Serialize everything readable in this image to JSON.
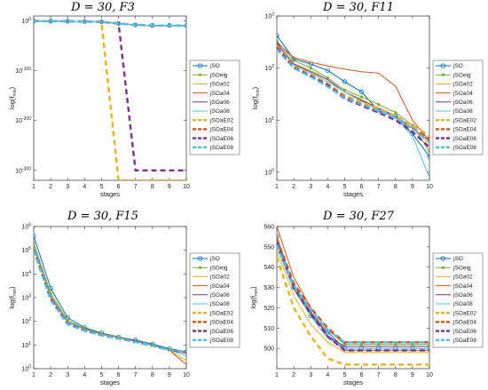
{
  "colors": {
    "jSO": "#0072BD",
    "jSOeig": "#77AC30",
    "jSOa02": "#EDB120",
    "jSOa04": "#D95319",
    "jSOa06": "#7E2F8E",
    "jSOa08": "#4DBEEE",
    "jSOaE02": "#EDB120",
    "jSOaE04": "#D95319",
    "jSOaE06": "#7E2F8E",
    "jSOaE08": "#4DBEEE"
  },
  "chart_data": [
    {
      "type": "line",
      "title": "D = 30, F3",
      "xlabel": "stages",
      "ylabel": "log(f_min)",
      "yscale": "log",
      "ylim": [
        1e-320,
        10000000000.0
      ],
      "yticks": [
        {
          "v": 1.0,
          "base": "10",
          "exp": "0"
        },
        {
          "v": 1e-100,
          "base": "10",
          "exp": "-100"
        },
        {
          "v": 1e-200,
          "base": "10",
          "exp": "-200"
        },
        {
          "v": 1e-300,
          "base": "10",
          "exp": "-300"
        }
      ],
      "xlim": [
        1,
        10
      ],
      "x": [
        1,
        2,
        3,
        4,
        5,
        6,
        7,
        8,
        9,
        10
      ],
      "legend": "right",
      "series": [
        {
          "name": "jSO",
          "values": [
            1,
            0.6,
            0.3,
            0.1,
            0.02,
            1e-05,
            1e-08,
            1e-09,
            1e-09,
            1e-09
          ]
        },
        {
          "name": "jSOeig",
          "values": [
            1,
            0.6,
            0.3,
            0.1,
            0.02,
            1e-05,
            1e-08,
            1e-09,
            1e-09,
            1e-09
          ]
        },
        {
          "name": "jSOa02",
          "values": [
            1,
            0.6,
            0.3,
            0.1,
            0.02,
            1e-05,
            1e-08,
            1e-09,
            1e-09,
            1e-09
          ]
        },
        {
          "name": "jSOa04",
          "values": [
            1,
            0.6,
            0.3,
            0.1,
            0.02,
            1e-05,
            1e-08,
            1e-09,
            1e-09,
            1e-09
          ]
        },
        {
          "name": "jSOa06",
          "values": [
            1,
            0.6,
            0.3,
            0.1,
            0.02,
            1e-05,
            1e-08,
            1e-09,
            1e-09,
            1e-09
          ]
        },
        {
          "name": "jSOa08",
          "values": [
            1,
            0.6,
            0.3,
            0.1,
            0.02,
            1e-05,
            1e-08,
            1e-09,
            1e-09,
            1e-09
          ]
        },
        {
          "name": "jSOaE02",
          "values": [
            1,
            0.6,
            0.3,
            0.1,
            0.02,
            1e-320,
            1e-320,
            1e-320,
            1e-320,
            1e-320
          ]
        },
        {
          "name": "jSOaE04",
          "values": [
            1,
            0.6,
            0.3,
            0.1,
            0.02,
            1e-05,
            1e-08,
            1e-09,
            1e-09,
            1e-09
          ]
        },
        {
          "name": "jSOaE06",
          "values": [
            1,
            0.6,
            0.3,
            0.1,
            0.02,
            1e-05,
            1e-300,
            1e-300,
            1e-300,
            1e-300
          ]
        },
        {
          "name": "jSOaE08",
          "values": [
            1,
            0.6,
            0.3,
            0.1,
            0.02,
            1e-05,
            1e-08,
            1e-09,
            1e-09,
            1e-09
          ]
        }
      ]
    },
    {
      "type": "line",
      "title": "D = 30, F11",
      "xlabel": "stages",
      "ylabel": "log(f_min)",
      "yscale": "log",
      "ylim": [
        0.7,
        1000
      ],
      "yticks": [
        {
          "v": 1,
          "base": "10",
          "exp": "0"
        },
        {
          "v": 10,
          "base": "10",
          "exp": "1"
        },
        {
          "v": 100,
          "base": "10",
          "exp": "2"
        },
        {
          "v": 1000,
          "base": "10",
          "exp": "3"
        }
      ],
      "xlim": [
        1,
        10
      ],
      "x": [
        1,
        2,
        3,
        4,
        5,
        6,
        7,
        8,
        9,
        10
      ],
      "legend": "right",
      "series": [
        {
          "name": "jSO",
          "values": [
            420,
            150,
            120,
            90,
            55,
            35,
            15,
            12,
            5.5,
            2.0
          ]
        },
        {
          "name": "jSOeig",
          "values": [
            330,
            140,
            100,
            65,
            38,
            28,
            20,
            14,
            8,
            2.5
          ]
        },
        {
          "name": "jSOa02",
          "values": [
            300,
            120,
            90,
            60,
            35,
            25,
            17,
            12,
            7,
            3.5
          ]
        },
        {
          "name": "jSOa04",
          "values": [
            310,
            160,
            130,
            110,
            95,
            85,
            80,
            45,
            10,
            4
          ]
        },
        {
          "name": "jSOa06",
          "values": [
            300,
            120,
            85,
            60,
            35,
            24,
            17,
            12,
            7,
            4
          ]
        },
        {
          "name": "jSOa08",
          "values": [
            280,
            115,
            80,
            55,
            35,
            23,
            16,
            11,
            5,
            0.8
          ]
        },
        {
          "name": "jSOaE02",
          "values": [
            260,
            110,
            75,
            50,
            30,
            22,
            17,
            12,
            8,
            5
          ]
        },
        {
          "name": "jSOaE04",
          "values": [
            250,
            105,
            70,
            48,
            28,
            20,
            15,
            10,
            7,
            4.5
          ]
        },
        {
          "name": "jSOaE06",
          "values": [
            240,
            100,
            70,
            46,
            26,
            19,
            14,
            10,
            6,
            3
          ]
        },
        {
          "name": "jSOaE08",
          "values": [
            230,
            100,
            68,
            44,
            27,
            20,
            15,
            11,
            7,
            3.8
          ]
        }
      ]
    },
    {
      "type": "line",
      "title": "D = 30, F15",
      "xlabel": "stages",
      "ylabel": "log(f_min)",
      "yscale": "log",
      "ylim": [
        1,
        1000000
      ],
      "yticks": [
        {
          "v": 1,
          "base": "10",
          "exp": "0"
        },
        {
          "v": 10,
          "base": "10",
          "exp": "1"
        },
        {
          "v": 100,
          "base": "10",
          "exp": "2"
        },
        {
          "v": 1000,
          "base": "10",
          "exp": "3"
        },
        {
          "v": 10000,
          "base": "10",
          "exp": "4"
        },
        {
          "v": 100000,
          "base": "10",
          "exp": "5"
        },
        {
          "v": 1000000,
          "base": "10",
          "exp": "6"
        }
      ],
      "xlim": [
        1,
        10
      ],
      "x": [
        1,
        2,
        3,
        4,
        5,
        6,
        7,
        8,
        9,
        10
      ],
      "legend": "right",
      "series": [
        {
          "name": "jSO",
          "values": [
            400000,
            2500,
            140,
            55,
            32,
            22,
            16,
            11,
            7,
            5.2
          ]
        },
        {
          "name": "jSOeig",
          "values": [
            200000,
            1500,
            110,
            50,
            30,
            21,
            15,
            10.5,
            6.5,
            4.8
          ]
        },
        {
          "name": "jSOa02",
          "values": [
            150000,
            1200,
            95,
            48,
            29,
            21,
            15,
            10,
            6,
            2.2
          ]
        },
        {
          "name": "jSOa04",
          "values": [
            140000,
            1100,
            90,
            46,
            28,
            20,
            14,
            10,
            6,
            1.5
          ]
        },
        {
          "name": "jSOa06",
          "values": [
            140000,
            1100,
            92,
            47,
            29,
            20,
            15,
            10,
            6,
            4.5
          ]
        },
        {
          "name": "jSOa08",
          "values": [
            130000,
            1000,
            90,
            46,
            28,
            20,
            14,
            9.5,
            6,
            3.5
          ]
        },
        {
          "name": "jSOaE02",
          "values": [
            120000,
            900,
            80,
            42,
            27,
            19,
            13.5,
            9.5,
            6,
            5
          ]
        },
        {
          "name": "jSOaE04",
          "values": [
            110000,
            850,
            78,
            41,
            26,
            19,
            13.5,
            9.5,
            6,
            5
          ]
        },
        {
          "name": "jSOaE06",
          "values": [
            110000,
            850,
            78,
            41,
            26,
            19,
            13.5,
            9.5,
            6,
            4.8
          ]
        },
        {
          "name": "jSOaE08",
          "values": [
            100000,
            800,
            75,
            40,
            26,
            19,
            13.5,
            9.5,
            6,
            5
          ]
        }
      ]
    },
    {
      "type": "line",
      "title": "D = 30, F27",
      "xlabel": "stages",
      "ylabel": "log(f_min)",
      "yscale": "linear",
      "ylim": [
        490,
        560
      ],
      "yticks": [
        {
          "v": 500,
          "label": "500"
        },
        {
          "v": 510,
          "label": "510"
        },
        {
          "v": 520,
          "label": "520"
        },
        {
          "v": 530,
          "label": "530"
        },
        {
          "v": 540,
          "label": "540"
        },
        {
          "v": 550,
          "label": "550"
        },
        {
          "v": 560,
          "label": "560"
        }
      ],
      "xlim": [
        1,
        10
      ],
      "x": [
        1,
        2,
        3,
        4,
        5,
        6,
        7,
        8,
        9,
        10
      ],
      "legend": "right",
      "series": [
        {
          "name": "jSO",
          "values": [
            555,
            530,
            516,
            508,
            500,
            500,
            500,
            500,
            500,
            500
          ]
        },
        {
          "name": "jSOeig",
          "values": [
            552,
            530,
            517,
            509,
            502,
            502,
            502,
            502,
            502,
            502
          ]
        },
        {
          "name": "jSOa02",
          "values": [
            548,
            526,
            512,
            503,
            498,
            498,
            498,
            498,
            498,
            498
          ]
        },
        {
          "name": "jSOa04",
          "values": [
            560,
            535,
            520,
            506,
            499,
            499,
            499,
            499,
            499,
            499
          ]
        },
        {
          "name": "jSOa06",
          "values": [
            553,
            531,
            518,
            506,
            501,
            501,
            501,
            501,
            501,
            501
          ]
        },
        {
          "name": "jSOa08",
          "values": [
            550,
            529,
            516,
            505,
            500,
            500,
            500,
            500,
            500,
            500
          ]
        },
        {
          "name": "jSOaE02",
          "values": [
            545,
            520,
            506,
            495,
            492,
            492,
            492,
            492,
            492,
            492
          ]
        },
        {
          "name": "jSOaE04",
          "values": [
            554,
            532,
            520,
            510,
            503,
            503,
            503,
            503,
            503,
            503
          ]
        },
        {
          "name": "jSOaE06",
          "values": [
            552,
            530,
            517,
            506,
            499,
            499,
            499,
            499,
            499,
            499
          ]
        },
        {
          "name": "jSOaE08",
          "values": [
            551,
            531,
            519,
            509,
            503,
            503,
            503,
            503,
            503,
            503
          ]
        }
      ]
    }
  ]
}
